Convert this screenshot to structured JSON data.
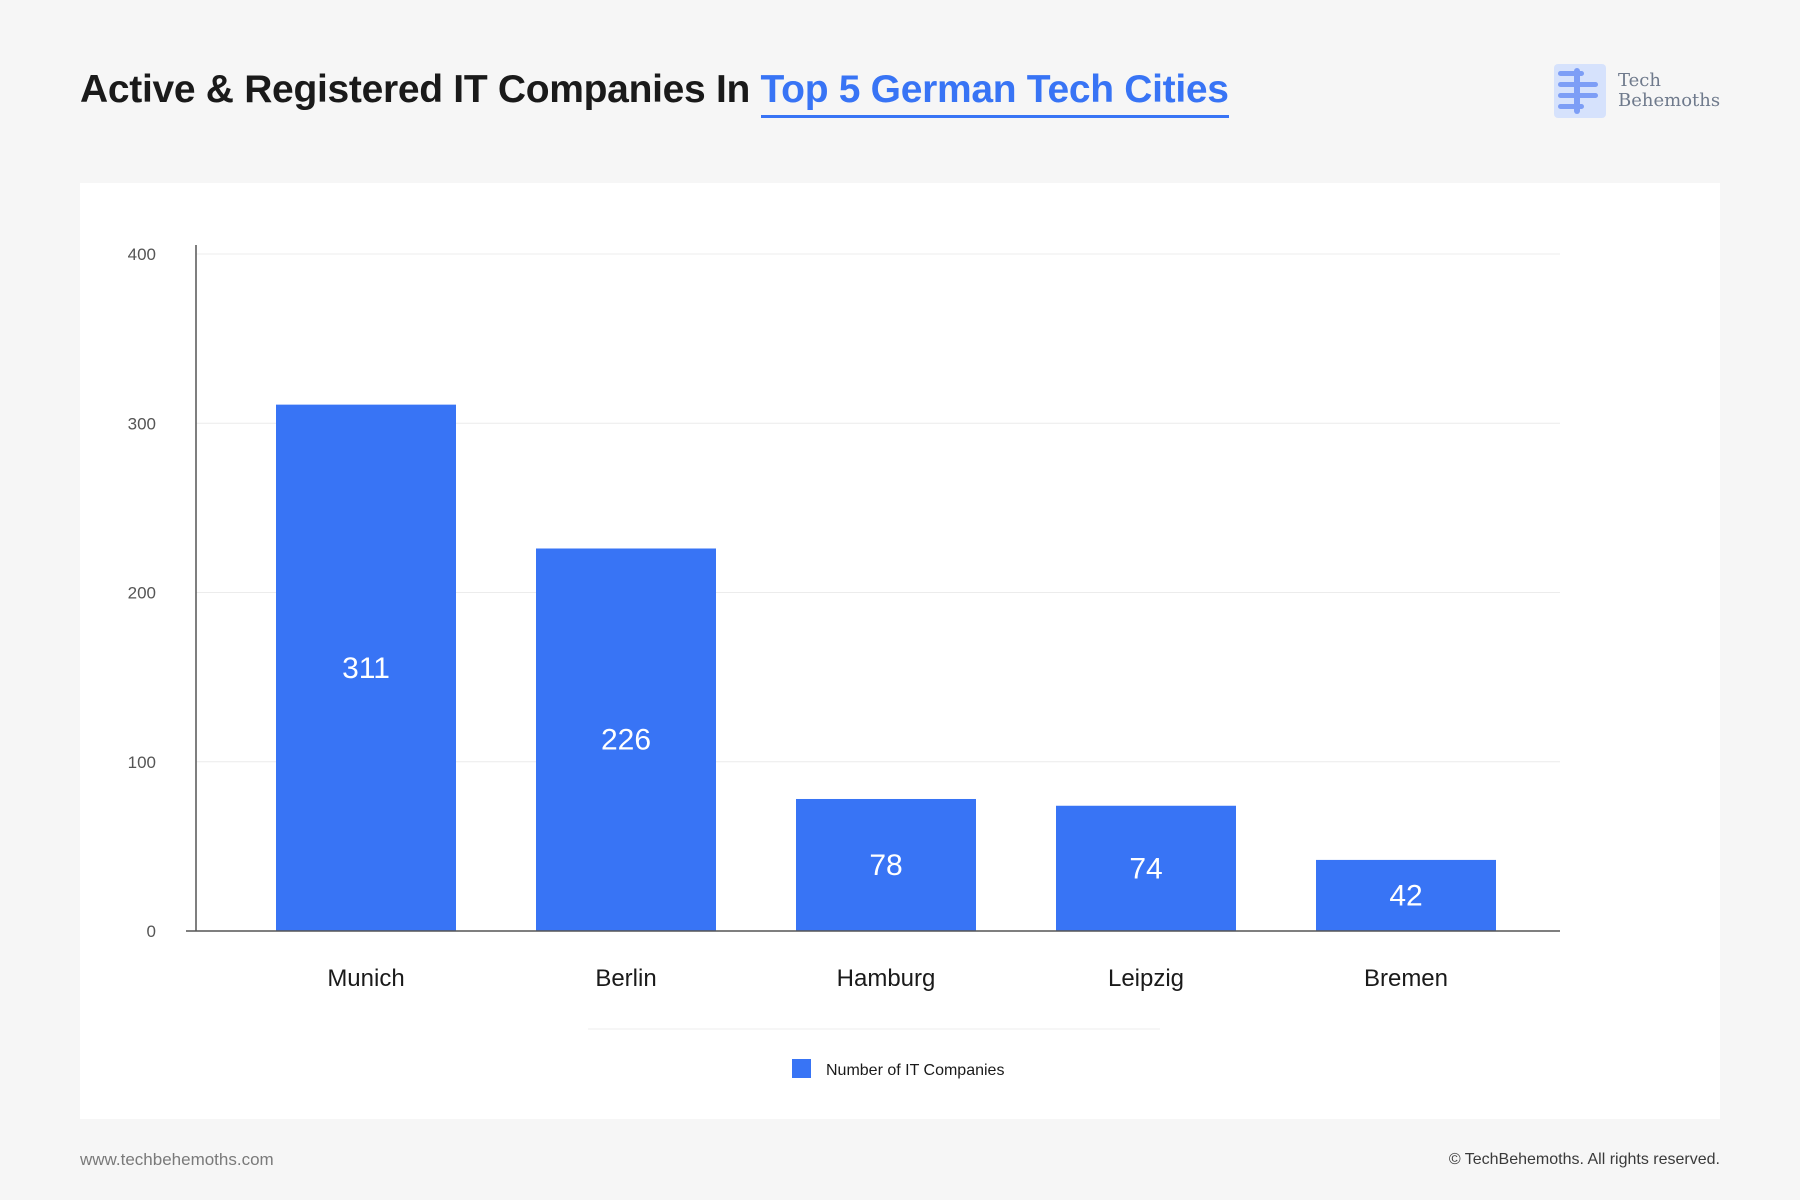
{
  "header": {
    "title_plain": "Active & Registered IT Companies In ",
    "title_highlight": "Top 5 German Tech Cities"
  },
  "logo": {
    "line1": "Tech",
    "line2": "Behemoths",
    "icon": "techbehemoths-logo-icon",
    "color": "#7d9ef6"
  },
  "chart_data": {
    "type": "bar",
    "categories": [
      "Munich",
      "Berlin",
      "Hamburg",
      "Leipzig",
      "Bremen"
    ],
    "series": [
      {
        "name": "Number of IT Companies",
        "values": [
          311,
          226,
          78,
          74,
          42
        ]
      }
    ],
    "data_labels": [
      "311",
      "226",
      "78",
      "74",
      "42"
    ],
    "ylim": [
      0,
      400
    ],
    "yticks": [
      0,
      100,
      200,
      300,
      400
    ],
    "grid": true,
    "legend": "bottom-center",
    "bar_color": "#3874f5",
    "xlabel": "",
    "ylabel": ""
  },
  "footer": {
    "website": "www.techbehemoths.com",
    "copyright": "© TechBehemoths. All rights reserved."
  }
}
